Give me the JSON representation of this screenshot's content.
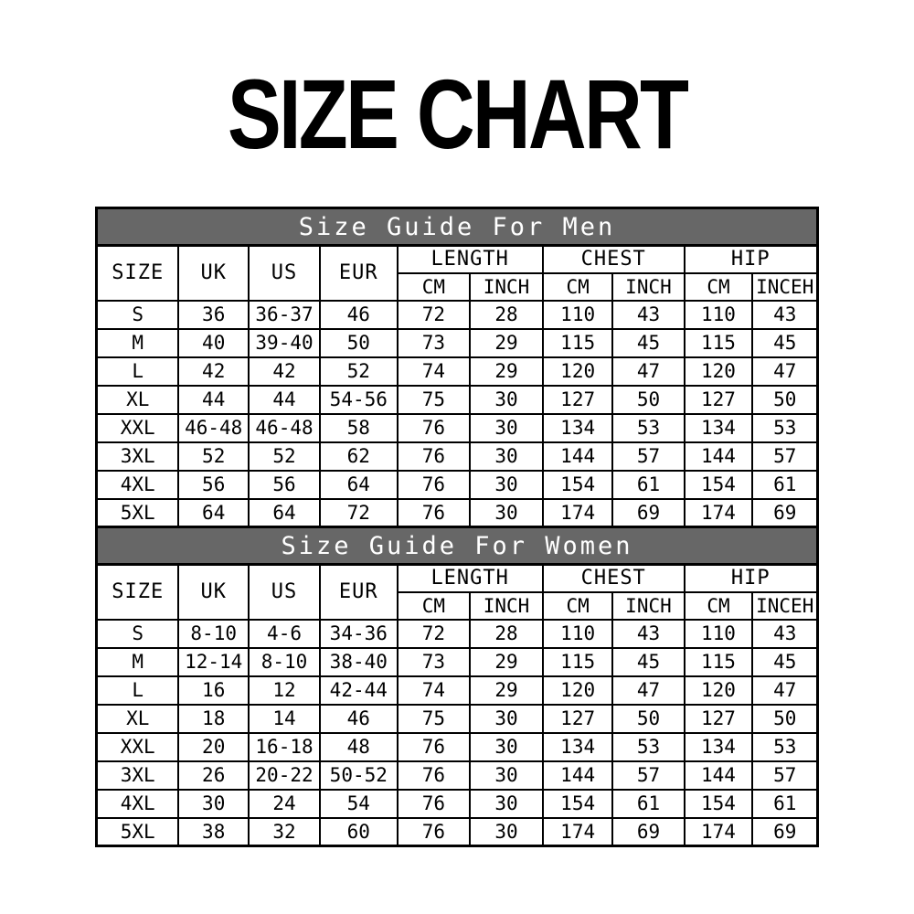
{
  "title": "SIZE CHART",
  "colors": {
    "section_bg": "#676767",
    "section_text": "#ffffff",
    "border": "#000000",
    "background": "#ffffff",
    "text": "#000000"
  },
  "tables": [
    {
      "section_title": "Size Guide For Men",
      "headers": {
        "size": "SIZE",
        "uk": "UK",
        "us": "US",
        "eur": "EUR",
        "length": "LENGTH",
        "chest": "CHEST",
        "hip": "HIP",
        "length_cm": "CM",
        "length_inch": "INCH",
        "chest_cm": "CM",
        "chest_inch": "INCH",
        "hip_cm": "CM",
        "hip_inch": "INCEH"
      },
      "rows": [
        [
          "S",
          "36",
          "36-37",
          "46",
          "72",
          "28",
          "110",
          "43",
          "110",
          "43"
        ],
        [
          "M",
          "40",
          "39-40",
          "50",
          "73",
          "29",
          "115",
          "45",
          "115",
          "45"
        ],
        [
          "L",
          "42",
          "42",
          "52",
          "74",
          "29",
          "120",
          "47",
          "120",
          "47"
        ],
        [
          "XL",
          "44",
          "44",
          "54-56",
          "75",
          "30",
          "127",
          "50",
          "127",
          "50"
        ],
        [
          "XXL",
          "46-48",
          "46-48",
          "58",
          "76",
          "30",
          "134",
          "53",
          "134",
          "53"
        ],
        [
          "3XL",
          "52",
          "52",
          "62",
          "76",
          "30",
          "144",
          "57",
          "144",
          "57"
        ],
        [
          "4XL",
          "56",
          "56",
          "64",
          "76",
          "30",
          "154",
          "61",
          "154",
          "61"
        ],
        [
          "5XL",
          "64",
          "64",
          "72",
          "76",
          "30",
          "174",
          "69",
          "174",
          "69"
        ]
      ]
    },
    {
      "section_title": "Size Guide For Women",
      "headers": {
        "size": "SIZE",
        "uk": "UK",
        "us": "US",
        "eur": "EUR",
        "length": "LENGTH",
        "chest": "CHEST",
        "hip": "HIP",
        "length_cm": "CM",
        "length_inch": "INCH",
        "chest_cm": "CM",
        "chest_inch": "INCH",
        "hip_cm": "CM",
        "hip_inch": "INCEH"
      },
      "rows": [
        [
          "S",
          "8-10",
          "4-6",
          "34-36",
          "72",
          "28",
          "110",
          "43",
          "110",
          "43"
        ],
        [
          "M",
          "12-14",
          "8-10",
          "38-40",
          "73",
          "29",
          "115",
          "45",
          "115",
          "45"
        ],
        [
          "L",
          "16",
          "12",
          "42-44",
          "74",
          "29",
          "120",
          "47",
          "120",
          "47"
        ],
        [
          "XL",
          "18",
          "14",
          "46",
          "75",
          "30",
          "127",
          "50",
          "127",
          "50"
        ],
        [
          "XXL",
          "20",
          "16-18",
          "48",
          "76",
          "30",
          "134",
          "53",
          "134",
          "53"
        ],
        [
          "3XL",
          "26",
          "20-22",
          "50-52",
          "76",
          "30",
          "144",
          "57",
          "144",
          "57"
        ],
        [
          "4XL",
          "30",
          "24",
          "54",
          "76",
          "30",
          "154",
          "61",
          "154",
          "61"
        ],
        [
          "5XL",
          "38",
          "32",
          "60",
          "76",
          "30",
          "174",
          "69",
          "174",
          "69"
        ]
      ]
    }
  ]
}
